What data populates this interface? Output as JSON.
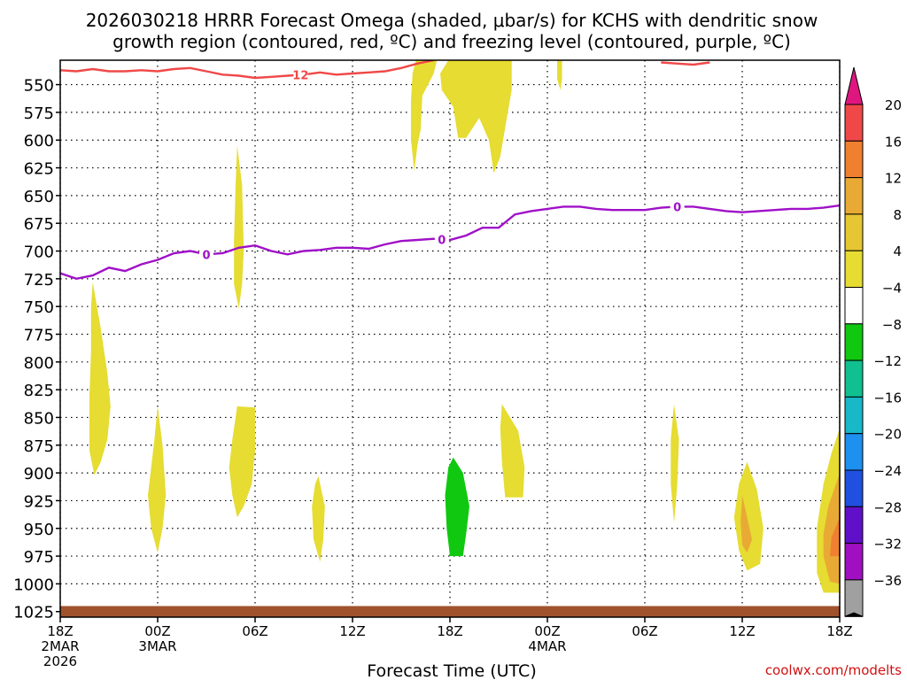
{
  "chart_data": {
    "type": "area",
    "title_line1": "2026030218 HRRR Forecast Omega (shaded, μbar/s) for KCHS with dendritic snow",
    "title_line2": "growth region (contoured, red, ºC) and freezing level (contoured, purple, ºC)",
    "xlabel": "Forecast Time (UTC)",
    "credit": "coolwx.com/modelts",
    "y_axis": {
      "direction": "down",
      "ylim": [
        528,
        1030
      ],
      "ticks": [
        550,
        575,
        600,
        625,
        650,
        675,
        700,
        725,
        750,
        775,
        800,
        825,
        850,
        875,
        900,
        925,
        950,
        975,
        1000,
        1025
      ]
    },
    "x_axis": {
      "xlim": [
        0,
        48
      ],
      "ticks": [
        {
          "h": 0,
          "l1": "18Z",
          "l2": "2MAR",
          "l3": "2026"
        },
        {
          "h": 6,
          "l1": "00Z",
          "l2": "3MAR",
          "l3": ""
        },
        {
          "h": 12,
          "l1": "06Z",
          "l2": "",
          "l3": ""
        },
        {
          "h": 18,
          "l1": "12Z",
          "l2": "",
          "l3": ""
        },
        {
          "h": 24,
          "l1": "18Z",
          "l2": "",
          "l3": ""
        },
        {
          "h": 30,
          "l1": "00Z",
          "l2": "4MAR",
          "l3": ""
        },
        {
          "h": 36,
          "l1": "06Z",
          "l2": "",
          "l3": ""
        },
        {
          "h": 42,
          "l1": "12Z",
          "l2": "",
          "l3": ""
        },
        {
          "h": 48,
          "l1": "18Z",
          "l2": "",
          "l3": ""
        }
      ]
    },
    "colorbar": {
      "labels": [
        "20",
        "16",
        "12",
        "8",
        "4",
        "−4",
        "−8",
        "−12",
        "−16",
        "−20",
        "−24",
        "−28",
        "−32",
        "−36"
      ],
      "top_triangle": "#e0167f",
      "bottom_triangle": "#000000",
      "colors": [
        "#f04848",
        "#f08030",
        "#e8aa34",
        "#e6c632",
        "#e6dc32",
        "#ffffff",
        "#10c810",
        "#10c090",
        "#18b8c8",
        "#1e90f0",
        "#2050e0",
        "#6010c8",
        "#a010c0",
        "#a0a0a0"
      ]
    },
    "freezing_level": {
      "label": "0",
      "color": "#a010c8",
      "points": [
        [
          0,
          720
        ],
        [
          1,
          725
        ],
        [
          2,
          722
        ],
        [
          3,
          715
        ],
        [
          4,
          718
        ],
        [
          5,
          712
        ],
        [
          6,
          708
        ],
        [
          7,
          702
        ],
        [
          8,
          700
        ],
        [
          9,
          703
        ],
        [
          10,
          702
        ],
        [
          11,
          697
        ],
        [
          12,
          695
        ],
        [
          13,
          700
        ],
        [
          14,
          703
        ],
        [
          15,
          700
        ],
        [
          16,
          699
        ],
        [
          17,
          697
        ],
        [
          18,
          697
        ],
        [
          19,
          698
        ],
        [
          20,
          694
        ],
        [
          21,
          691
        ],
        [
          22,
          690
        ],
        [
          23,
          689
        ],
        [
          24,
          690
        ],
        [
          25,
          686
        ],
        [
          26,
          679
        ],
        [
          27,
          679
        ],
        [
          28,
          667
        ],
        [
          29,
          664
        ],
        [
          30,
          662
        ],
        [
          31,
          660
        ],
        [
          32,
          660
        ],
        [
          33,
          662
        ],
        [
          34,
          663
        ],
        [
          35,
          663
        ],
        [
          36,
          663
        ],
        [
          37,
          661
        ],
        [
          38,
          660
        ],
        [
          39,
          660
        ],
        [
          40,
          662
        ],
        [
          41,
          664
        ],
        [
          42,
          665
        ],
        [
          43,
          664
        ],
        [
          44,
          663
        ],
        [
          45,
          662
        ],
        [
          46,
          662
        ],
        [
          47,
          661
        ],
        [
          48,
          659
        ]
      ],
      "labels_at": [
        9,
        23.5,
        38
      ]
    },
    "dgz_top": {
      "label": "12",
      "color": "#f04848",
      "segments": [
        [
          [
            0,
            537
          ],
          [
            1,
            538
          ],
          [
            2,
            536
          ],
          [
            3,
            538
          ],
          [
            4,
            538
          ],
          [
            5,
            537
          ],
          [
            6,
            538
          ],
          [
            7,
            536
          ],
          [
            8,
            535
          ],
          [
            9,
            538
          ],
          [
            10,
            541
          ],
          [
            11,
            542
          ],
          [
            12,
            544
          ],
          [
            13,
            543
          ],
          [
            14,
            542
          ],
          [
            15,
            541
          ],
          [
            16,
            539
          ],
          [
            17,
            541
          ],
          [
            18,
            540
          ],
          [
            19,
            539
          ],
          [
            20,
            538
          ],
          [
            21,
            535
          ],
          [
            22,
            531
          ],
          [
            23,
            528
          ]
        ],
        [
          [
            37,
            530
          ],
          [
            38,
            531
          ],
          [
            39,
            532
          ],
          [
            40,
            530
          ]
        ]
      ],
      "labels_at": [
        14.8
      ]
    },
    "surface_band": {
      "color": "#a0522d",
      "ylim": [
        1020,
        1030
      ]
    },
    "omega_regions": [
      {
        "fill": "#e6dc32",
        "points": [
          [
            21.9,
            528
          ],
          [
            23.2,
            528
          ],
          [
            23.0,
            540
          ],
          [
            22.3,
            560
          ],
          [
            22.2,
            590
          ],
          [
            22.0,
            605
          ],
          [
            21.8,
            628
          ],
          [
            21.6,
            600
          ],
          [
            21.6,
            565
          ],
          [
            21.7,
            540
          ]
        ]
      },
      {
        "fill": "#e6dc32",
        "points": [
          [
            23.9,
            528
          ],
          [
            27.8,
            528
          ],
          [
            27.8,
            555
          ],
          [
            27.5,
            580
          ],
          [
            27.1,
            615
          ],
          [
            26.7,
            630
          ],
          [
            26.4,
            600
          ],
          [
            25.8,
            580
          ],
          [
            25.0,
            598
          ],
          [
            24.5,
            598
          ],
          [
            24.2,
            570
          ],
          [
            23.5,
            555
          ],
          [
            23.4,
            540
          ]
        ]
      },
      {
        "fill": "#e6dc32",
        "points": [
          [
            30.6,
            528
          ],
          [
            30.9,
            528
          ],
          [
            30.9,
            545
          ],
          [
            30.8,
            555
          ],
          [
            30.6,
            545
          ]
        ]
      },
      {
        "fill": "#e6dc32",
        "points": [
          [
            10.9,
            605
          ],
          [
            11.2,
            640
          ],
          [
            11.3,
            700
          ],
          [
            11.2,
            730
          ],
          [
            11.0,
            752
          ],
          [
            10.7,
            730
          ],
          [
            10.7,
            690
          ],
          [
            10.8,
            640
          ]
        ]
      },
      {
        "fill": "#e6dc32",
        "points": [
          [
            2.0,
            728
          ],
          [
            2.5,
            770
          ],
          [
            2.9,
            810
          ],
          [
            3.1,
            840
          ],
          [
            2.9,
            870
          ],
          [
            2.5,
            890
          ],
          [
            2.1,
            902
          ],
          [
            1.8,
            880
          ],
          [
            1.8,
            830
          ],
          [
            1.9,
            790
          ],
          [
            1.9,
            750
          ]
        ]
      },
      {
        "fill": "#e6dc32",
        "points": [
          [
            6.0,
            840
          ],
          [
            6.3,
            875
          ],
          [
            6.5,
            920
          ],
          [
            6.3,
            950
          ],
          [
            6.0,
            972
          ],
          [
            5.6,
            950
          ],
          [
            5.4,
            920
          ],
          [
            5.6,
            895
          ],
          [
            5.8,
            870
          ]
        ]
      },
      {
        "fill": "#e6dc32",
        "points": [
          [
            10.9,
            840
          ],
          [
            12.0,
            841
          ],
          [
            12.0,
            880
          ],
          [
            11.8,
            910
          ],
          [
            11.3,
            930
          ],
          [
            10.9,
            940
          ],
          [
            10.6,
            920
          ],
          [
            10.4,
            895
          ],
          [
            10.6,
            870
          ],
          [
            10.8,
            850
          ]
        ]
      },
      {
        "fill": "#e6dc32",
        "points": [
          [
            15.9,
            903
          ],
          [
            16.3,
            930
          ],
          [
            16.2,
            960
          ],
          [
            16.0,
            980
          ],
          [
            15.6,
            960
          ],
          [
            15.5,
            930
          ],
          [
            15.7,
            910
          ]
        ]
      },
      {
        "fill": "#10c810",
        "points": [
          [
            24.2,
            886
          ],
          [
            24.8,
            900
          ],
          [
            25.2,
            930
          ],
          [
            25.0,
            955
          ],
          [
            24.8,
            975
          ],
          [
            24.0,
            975
          ],
          [
            23.8,
            950
          ],
          [
            23.7,
            920
          ],
          [
            23.9,
            895
          ]
        ]
      },
      {
        "fill": "#e6dc32",
        "points": [
          [
            27.2,
            838
          ],
          [
            28.2,
            862
          ],
          [
            28.6,
            895
          ],
          [
            28.5,
            922
          ],
          [
            27.4,
            922
          ],
          [
            27.2,
            890
          ],
          [
            27.1,
            860
          ]
        ]
      },
      {
        "fill": "#e6dc32",
        "points": [
          [
            37.8,
            838
          ],
          [
            38.1,
            870
          ],
          [
            38.0,
            910
          ],
          [
            37.8,
            945
          ],
          [
            37.6,
            910
          ],
          [
            37.6,
            870
          ]
        ]
      },
      {
        "fill": "#e6dc32",
        "points": [
          [
            42.3,
            890
          ],
          [
            42.9,
            915
          ],
          [
            43.3,
            950
          ],
          [
            43.1,
            982
          ],
          [
            42.3,
            988
          ],
          [
            41.8,
            970
          ],
          [
            41.5,
            940
          ],
          [
            41.8,
            910
          ]
        ]
      },
      {
        "fill": "#e8aa34",
        "points": [
          [
            42.0,
            920
          ],
          [
            42.3,
            940
          ],
          [
            42.6,
            960
          ],
          [
            42.3,
            972
          ],
          [
            42.0,
            965
          ],
          [
            41.9,
            945
          ]
        ]
      },
      {
        "fill": "#e6dc32",
        "points": [
          [
            48,
            860
          ],
          [
            48,
            1008
          ],
          [
            47.0,
            1008
          ],
          [
            46.6,
            990
          ],
          [
            46.6,
            950
          ],
          [
            47.0,
            910
          ],
          [
            47.5,
            882
          ]
        ]
      },
      {
        "fill": "#e8aa34",
        "points": [
          [
            48,
            900
          ],
          [
            48,
            1000
          ],
          [
            47.4,
            998
          ],
          [
            47.0,
            975
          ],
          [
            47.0,
            955
          ],
          [
            47.3,
            930
          ]
        ]
      },
      {
        "fill": "#f08030",
        "points": [
          [
            48,
            940
          ],
          [
            48,
            975
          ],
          [
            47.4,
            975
          ],
          [
            47.5,
            958
          ]
        ]
      }
    ]
  }
}
